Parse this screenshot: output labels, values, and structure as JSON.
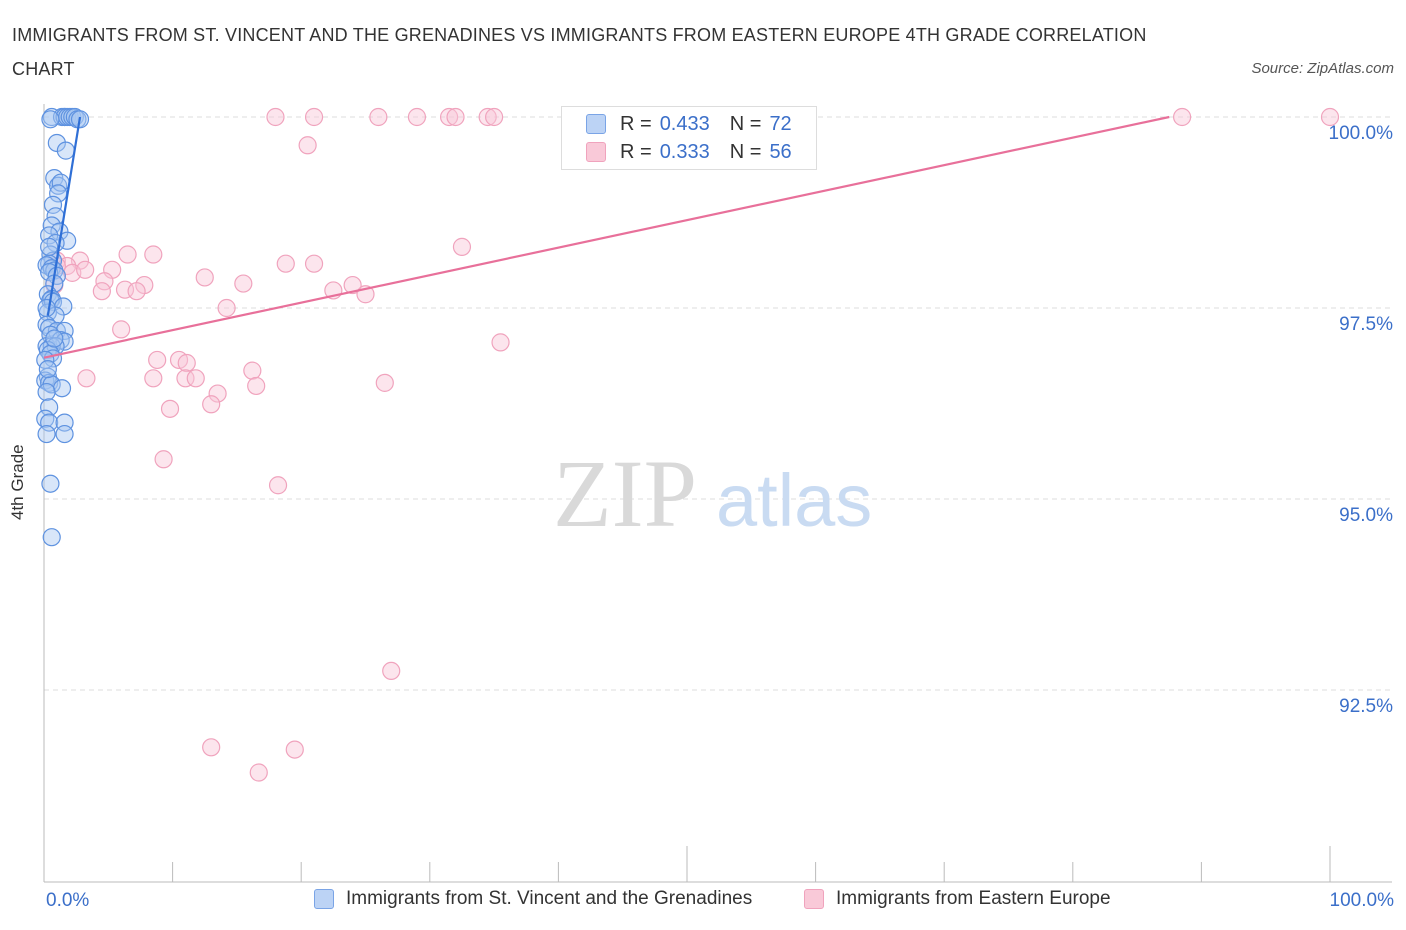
{
  "title": "IMMIGRANTS FROM ST. VINCENT AND THE GRENADINES VS IMMIGRANTS FROM EASTERN EUROPE 4TH GRADE CORRELATION CHART",
  "source": "Source: ZipAtlas.com",
  "watermark": {
    "zip": "ZIP",
    "atlas": "atlas"
  },
  "legend_stats": [
    {
      "r_label": "R =",
      "r_value": "0.433",
      "n_label": "N =",
      "n_value": "72"
    },
    {
      "r_label": "R =",
      "r_value": "0.333",
      "n_label": "N =",
      "n_value": "56"
    }
  ],
  "chart_data": {
    "type": "scatter",
    "title": "IMMIGRANTS FROM ST. VINCENT AND THE GRENADINES VS IMMIGRANTS FROM EASTERN EUROPE 4TH GRADE CORRELATION CHART",
    "xlabel": "",
    "ylabel": "4th Grade",
    "xlim": [
      0,
      100
    ],
    "ylim": [
      90.0,
      100.2
    ],
    "x_tick_labels": [
      "0.0%",
      "100.0%"
    ],
    "y_ticks": [
      92.5,
      95.0,
      97.5,
      100.0
    ],
    "y_tick_labels": [
      "92.5%",
      "95.0%",
      "97.5%",
      "100.0%"
    ],
    "grid": true,
    "legend_position": "bottom",
    "colors": {
      "blue": "#6fa0e8",
      "pink": "#f3a6c0",
      "blue_line": "#2f6fd6",
      "pink_line": "#e8709a"
    },
    "series": [
      {
        "name": "Immigrants from St. Vincent and the Grenadines",
        "color": "blue",
        "R": 0.433,
        "N": 72,
        "trend": {
          "x": [
            0.3,
            2.8
          ],
          "y": [
            97.4,
            100.0
          ]
        },
        "points": [
          [
            0.6,
            100
          ],
          [
            1.4,
            100
          ],
          [
            1.6,
            100
          ],
          [
            1.6,
            100
          ],
          [
            1.8,
            100
          ],
          [
            2.0,
            100
          ],
          [
            2.2,
            100
          ],
          [
            2.4,
            100
          ],
          [
            2.6,
            99.97
          ],
          [
            2.8,
            99.97
          ],
          [
            0.5,
            99.97
          ],
          [
            1.0,
            99.66
          ],
          [
            1.7,
            99.56
          ],
          [
            0.8,
            99.2
          ],
          [
            1.1,
            99.1
          ],
          [
            1.3,
            99.14
          ],
          [
            1.1,
            99
          ],
          [
            0.7,
            98.85
          ],
          [
            0.9,
            98.7
          ],
          [
            0.6,
            98.58
          ],
          [
            1.2,
            98.5
          ],
          [
            0.4,
            98.45
          ],
          [
            1.8,
            98.38
          ],
          [
            0.9,
            98.35
          ],
          [
            0.5,
            98.2
          ],
          [
            0.7,
            98.12
          ],
          [
            0.4,
            98.08
          ],
          [
            0.2,
            98.06
          ],
          [
            0.6,
            98.02
          ],
          [
            0.8,
            97.99
          ],
          [
            0.4,
            97.97
          ],
          [
            1.0,
            97.92
          ],
          [
            0.8,
            97.82
          ],
          [
            0.3,
            97.68
          ],
          [
            0.6,
            97.62
          ],
          [
            0.5,
            97.6
          ],
          [
            0.7,
            97.58
          ],
          [
            1.5,
            97.52
          ],
          [
            0.3,
            97.44
          ],
          [
            0.9,
            97.4
          ],
          [
            0.2,
            97.28
          ],
          [
            0.4,
            97.24
          ],
          [
            1.0,
            97.2
          ],
          [
            1.6,
            97.2
          ],
          [
            0.5,
            97.15
          ],
          [
            1.3,
            97.08
          ],
          [
            1.6,
            97.06
          ],
          [
            0.2,
            97.0
          ],
          [
            0.6,
            97.0
          ],
          [
            0.9,
            97.0
          ],
          [
            0.3,
            96.95
          ],
          [
            0.5,
            96.9
          ],
          [
            0.7,
            96.84
          ],
          [
            0.1,
            96.82
          ],
          [
            0.3,
            96.6
          ],
          [
            0.1,
            96.55
          ],
          [
            0.4,
            96.52
          ],
          [
            0.6,
            96.5
          ],
          [
            1.4,
            96.45
          ],
          [
            0.2,
            96.4
          ],
          [
            0.4,
            96.2
          ],
          [
            0.1,
            96.05
          ],
          [
            0.4,
            96.0
          ],
          [
            1.6,
            96.0
          ],
          [
            0.2,
            95.85
          ],
          [
            1.6,
            95.85
          ],
          [
            0.5,
            95.2
          ],
          [
            0.6,
            94.5
          ],
          [
            0.3,
            96.7
          ],
          [
            0.8,
            97.1
          ],
          [
            0.2,
            97.5
          ],
          [
            0.4,
            98.3
          ]
        ]
      },
      {
        "name": "Immigrants from Eastern Europe",
        "color": "pink",
        "R": 0.333,
        "N": 56,
        "trend": {
          "x": [
            0,
            87.5
          ],
          "y": [
            96.85,
            100.0
          ]
        },
        "points": [
          [
            18,
            100
          ],
          [
            21,
            100
          ],
          [
            26,
            100
          ],
          [
            29,
            100
          ],
          [
            31.5,
            100
          ],
          [
            32.0,
            100
          ],
          [
            34.5,
            100
          ],
          [
            35,
            100
          ],
          [
            88.5,
            100
          ],
          [
            100,
            100
          ],
          [
            20.5,
            99.63
          ],
          [
            32.5,
            98.3
          ],
          [
            6.5,
            98.2
          ],
          [
            8.5,
            98.2
          ],
          [
            1.0,
            98.12
          ],
          [
            2.8,
            98.12
          ],
          [
            18.8,
            98.08
          ],
          [
            21.0,
            98.08
          ],
          [
            1.8,
            98.05
          ],
          [
            5.3,
            98.0
          ],
          [
            2.2,
            97.96
          ],
          [
            12.5,
            97.9
          ],
          [
            4.7,
            97.85
          ],
          [
            0.8,
            97.8
          ],
          [
            15.5,
            97.82
          ],
          [
            7.8,
            97.8
          ],
          [
            24.0,
            97.8
          ],
          [
            6.3,
            97.74
          ],
          [
            22.5,
            97.73
          ],
          [
            4.5,
            97.72
          ],
          [
            7.2,
            97.72
          ],
          [
            25.0,
            97.68
          ],
          [
            14.2,
            97.5
          ],
          [
            6.0,
            97.22
          ],
          [
            35.5,
            97.05
          ],
          [
            8.8,
            96.82
          ],
          [
            10.5,
            96.82
          ],
          [
            11.1,
            96.78
          ],
          [
            16.2,
            96.68
          ],
          [
            3.3,
            96.58
          ],
          [
            8.5,
            96.58
          ],
          [
            11.0,
            96.58
          ],
          [
            11.8,
            96.58
          ],
          [
            26.5,
            96.52
          ],
          [
            16.5,
            96.48
          ],
          [
            13.5,
            96.38
          ],
          [
            13.0,
            96.24
          ],
          [
            9.8,
            96.18
          ],
          [
            9.3,
            95.52
          ],
          [
            18.2,
            95.18
          ],
          [
            27.0,
            92.75
          ],
          [
            13.0,
            91.75
          ],
          [
            19.5,
            91.72
          ],
          [
            16.7,
            91.42
          ],
          [
            1.0,
            98.05
          ],
          [
            3.2,
            98.0
          ]
        ]
      }
    ]
  },
  "legend_bottom": [
    {
      "label": "Immigrants from St. Vincent and the Grenadines"
    },
    {
      "label": "Immigrants from Eastern Europe"
    }
  ]
}
